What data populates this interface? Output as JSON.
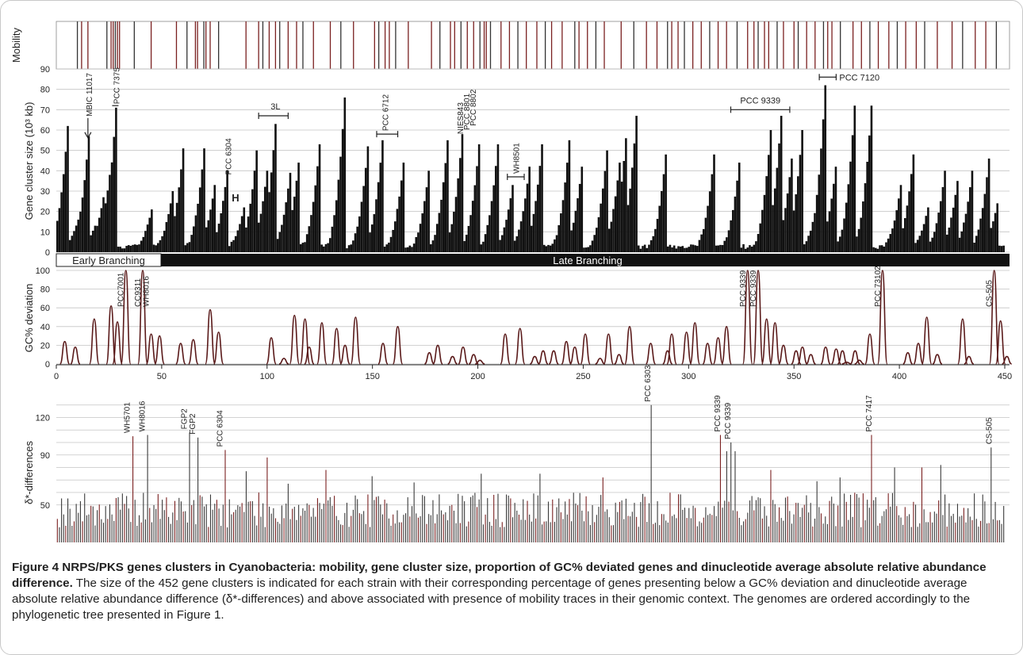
{
  "chart_data": [
    {
      "panel": "mobility",
      "type": "bar",
      "ylabel": "Mobility",
      "x_positions": [
        10,
        12,
        15,
        24,
        26,
        27,
        28,
        29,
        30,
        37,
        45,
        57,
        62,
        66,
        67,
        70,
        71,
        73,
        77,
        90,
        96,
        98,
        101,
        104,
        106,
        110,
        114,
        117,
        122,
        130,
        135,
        141,
        151,
        153,
        156,
        158,
        161,
        167,
        178,
        182,
        187,
        189,
        192,
        195,
        198,
        201,
        203,
        204,
        206,
        211,
        215,
        219,
        223,
        228,
        232,
        235,
        240,
        246,
        248,
        252,
        256,
        260,
        268,
        274,
        280,
        285,
        290,
        292,
        295,
        298,
        302,
        306,
        310,
        314,
        318,
        323,
        328,
        331,
        333,
        336,
        338,
        342,
        345,
        350,
        352,
        356,
        360,
        364,
        366,
        368,
        372,
        378,
        382,
        386,
        390,
        395,
        399,
        403,
        408,
        412,
        418,
        425,
        430,
        436,
        441,
        446
      ]
    },
    {
      "panel": "gene-cluster-size",
      "type": "bar",
      "ylabel": "Gene cluster size (10³ kb)",
      "ylim": [
        0,
        90
      ],
      "yticks": [
        "0",
        "10",
        "20",
        "30",
        "40",
        "50",
        "60",
        "70",
        "80",
        "90"
      ],
      "n": 452,
      "peaks": [
        [
          0,
          10
        ],
        [
          3,
          32
        ],
        [
          5,
          62
        ],
        [
          10,
          16
        ],
        [
          15,
          57
        ],
        [
          18,
          13
        ],
        [
          22,
          27
        ],
        [
          25,
          38
        ],
        [
          28,
          71
        ],
        [
          45,
          21
        ],
        [
          55,
          30
        ],
        [
          60,
          51
        ],
        [
          70,
          51
        ],
        [
          75,
          33
        ],
        [
          81,
          40
        ],
        [
          89,
          22
        ],
        [
          95,
          50
        ],
        [
          100,
          40
        ],
        [
          104,
          63
        ],
        [
          111,
          39
        ],
        [
          115,
          44
        ],
        [
          125,
          53
        ],
        [
          137,
          76
        ],
        [
          148,
          52
        ],
        [
          155,
          55
        ],
        [
          165,
          44
        ],
        [
          177,
          40
        ],
        [
          186,
          55
        ],
        [
          193,
          58
        ],
        [
          201,
          53
        ],
        [
          210,
          53
        ],
        [
          217,
          33
        ],
        [
          225,
          42
        ],
        [
          231,
          53
        ],
        [
          244,
          55
        ],
        [
          250,
          42
        ],
        [
          262,
          50
        ],
        [
          268,
          44
        ],
        [
          271,
          56
        ],
        [
          276,
          67
        ],
        [
          290,
          48
        ],
        [
          313,
          48
        ],
        [
          325,
          44
        ],
        [
          340,
          60
        ],
        [
          345,
          67
        ],
        [
          350,
          46
        ],
        [
          355,
          60
        ],
        [
          363,
          30
        ],
        [
          366,
          82
        ],
        [
          371,
          42
        ],
        [
          380,
          72
        ],
        [
          388,
          72
        ],
        [
          402,
          33
        ],
        [
          408,
          48
        ],
        [
          415,
          22
        ],
        [
          423,
          40
        ],
        [
          429,
          35
        ],
        [
          436,
          40
        ],
        [
          444,
          46
        ],
        [
          448,
          24
        ]
      ],
      "annotations": [
        "MBIC 11017",
        "PCC 7375",
        "3L",
        "PCC 6304",
        "H",
        "PCC 6712",
        "NIES843",
        "PCC 8801",
        "PCC 8802",
        "WH8501",
        "PCC 9339",
        "PCC 7120"
      ],
      "branching": {
        "early": "Early Branching",
        "late": "Late Branching"
      }
    },
    {
      "panel": "gc-deviation",
      "type": "line",
      "ylabel": "GC% deviation",
      "ylim": [
        0,
        100
      ],
      "yticks": [
        "0",
        "20",
        "40",
        "60",
        "80",
        "100"
      ],
      "xlim": [
        0,
        450
      ],
      "xticks": [
        "0",
        "50",
        "100",
        "150",
        "200",
        "250",
        "300",
        "350",
        "400",
        "450"
      ],
      "peaks": [
        [
          4,
          24
        ],
        [
          9,
          18
        ],
        [
          18,
          48
        ],
        [
          26,
          62
        ],
        [
          29,
          45
        ],
        [
          33,
          100
        ],
        [
          41,
          100
        ],
        [
          45,
          32
        ],
        [
          49,
          30
        ],
        [
          59,
          22
        ],
        [
          65,
          26
        ],
        [
          73,
          58
        ],
        [
          77,
          34
        ],
        [
          102,
          28
        ],
        [
          108,
          6
        ],
        [
          113,
          52
        ],
        [
          118,
          48
        ],
        [
          120,
          18
        ],
        [
          126,
          44
        ],
        [
          133,
          38
        ],
        [
          137,
          20
        ],
        [
          142,
          50
        ],
        [
          155,
          22
        ],
        [
          162,
          40
        ],
        [
          177,
          12
        ],
        [
          181,
          20
        ],
        [
          188,
          8
        ],
        [
          193,
          18
        ],
        [
          198,
          10
        ],
        [
          201,
          4
        ],
        [
          213,
          32
        ],
        [
          220,
          38
        ],
        [
          227,
          8
        ],
        [
          231,
          14
        ],
        [
          236,
          14
        ],
        [
          242,
          24
        ],
        [
          246,
          18
        ],
        [
          251,
          32
        ],
        [
          258,
          6
        ],
        [
          262,
          32
        ],
        [
          267,
          10
        ],
        [
          272,
          40
        ],
        [
          282,
          22
        ],
        [
          290,
          14
        ],
        [
          292,
          32
        ],
        [
          299,
          34
        ],
        [
          303,
          44
        ],
        [
          309,
          22
        ],
        [
          314,
          28
        ],
        [
          318,
          40
        ],
        [
          328,
          100
        ],
        [
          333,
          100
        ],
        [
          337,
          48
        ],
        [
          341,
          44
        ],
        [
          345,
          20
        ],
        [
          351,
          14
        ],
        [
          354,
          18
        ],
        [
          358,
          10
        ],
        [
          365,
          18
        ],
        [
          370,
          16
        ],
        [
          373,
          14
        ],
        [
          375,
          2
        ],
        [
          379,
          14
        ],
        [
          381,
          4
        ],
        [
          386,
          32
        ],
        [
          392,
          100
        ],
        [
          404,
          12
        ],
        [
          409,
          22
        ],
        [
          413,
          50
        ],
        [
          418,
          10
        ],
        [
          430,
          48
        ],
        [
          433,
          8
        ],
        [
          445,
          100
        ],
        [
          448,
          46
        ],
        [
          451,
          8
        ]
      ],
      "annotations": [
        "PCC7001",
        "CC9311",
        "WH8016",
        "PCC 9339",
        "PCC 9339",
        "PCC 73102",
        "CS-505"
      ]
    },
    {
      "panel": "dinucleotide-difference",
      "type": "bar",
      "ylabel": "δ*-differences",
      "ylim": [
        20,
        140
      ],
      "yticks": [
        "50",
        "90",
        "120"
      ],
      "n": 452,
      "peaks": [
        [
          36,
          105
        ],
        [
          43,
          106
        ],
        [
          63,
          108
        ],
        [
          67,
          104
        ],
        [
          80,
          94
        ],
        [
          90,
          77
        ],
        [
          100,
          88
        ],
        [
          110,
          67
        ],
        [
          128,
          78
        ],
        [
          150,
          73
        ],
        [
          170,
          68
        ],
        [
          202,
          75
        ],
        [
          230,
          75
        ],
        [
          260,
          72
        ],
        [
          283,
          130
        ],
        [
          316,
          106
        ],
        [
          319,
          93
        ],
        [
          321,
          100
        ],
        [
          323,
          93
        ],
        [
          340,
          78
        ],
        [
          362,
          69
        ],
        [
          373,
          72
        ],
        [
          388,
          106
        ],
        [
          399,
          80
        ],
        [
          412,
          80
        ],
        [
          421,
          82
        ],
        [
          445,
          96
        ]
      ],
      "annotations": [
        "WH5701",
        "WH8016",
        "FGP2",
        "FGP2",
        "PCC 6304",
        "PCC 6303",
        "PCC 9339",
        "PCC 9339",
        "PCC 7417",
        "CS-505"
      ]
    }
  ],
  "caption": {
    "title": "Figure 4 NRPS/PKS genes clusters in Cyanobacteria: mobility, gene cluster size, proportion of GC% deviated genes and dinucleotide average absolute relative abundance difference.",
    "text": "The size of the 452 gene clusters is indicated for each strain with their corresponding percentage of genes presenting below a GC% deviation and dinucleotide average absolute relative abundance difference (δ*-differences) and above associated with presence of mobility traces in their genomic context. The genomes are ordered accordingly to the phylogenetic tree presented in Figure 1."
  },
  "colors": {
    "bar": "#111111",
    "tick_red": "#7a2020",
    "curve": "#5a1a1a",
    "grid": "#c4c4c4"
  }
}
